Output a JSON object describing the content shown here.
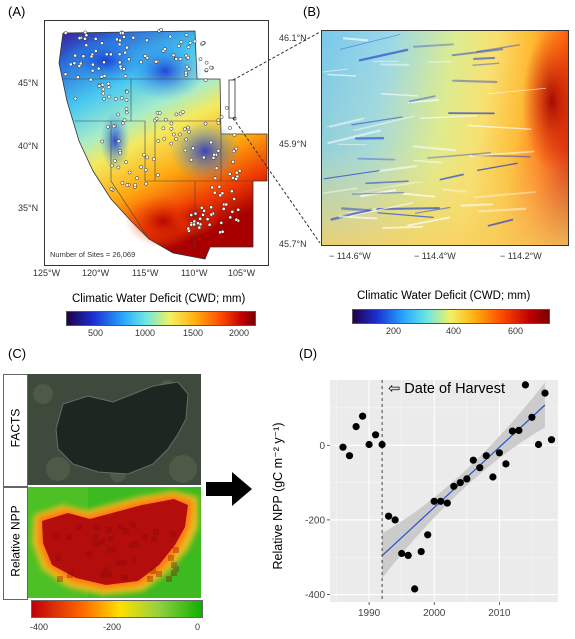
{
  "panels": {
    "a": {
      "label": "(A)",
      "lat_ticks": [
        "45°N",
        "40°N",
        "35°N"
      ],
      "lon_ticks": [
        "125°W",
        "120°W",
        "115°W",
        "110°W",
        "105°W"
      ],
      "note": "Number of Sites = 26,069",
      "colorbar_title": "Climatic Water Deficit (CWD; mm)",
      "colorbar_ticks": [
        "500",
        "1000",
        "1500",
        "2000"
      ]
    },
    "b": {
      "label": "(B)",
      "lat_ticks": [
        "46.1°N",
        "45.9°N",
        "45.7°N"
      ],
      "lon_ticks": [
        "− 114.6°W",
        "− 114.4°W",
        "− 114.2°W"
      ],
      "colorbar_title": "Climatic Water Deficit (CWD; mm)",
      "colorbar_ticks": [
        "200",
        "400",
        "600"
      ]
    },
    "c": {
      "label": "(C)",
      "strip_top": "FACTS",
      "strip_bottom": "Relative NPP",
      "colorbar_ticks": [
        "-400",
        "-200",
        "0"
      ]
    },
    "d": {
      "label": "(D)",
      "annotation": "⇦ Date of Harvest"
    }
  },
  "colors": {
    "cwd_scale": [
      "#20004a",
      "#1a2fd0",
      "#28a8ff",
      "#6ee8e0",
      "#f4f060",
      "#ffb010",
      "#ff4a00",
      "#c00000",
      "#7a0000"
    ],
    "npp_scale": [
      "#c0000a",
      "#ff6a00",
      "#ffe000",
      "#90d040",
      "#10b000"
    ],
    "fit_line": "#2952c8",
    "ci_band": "#c8c8c8"
  },
  "chart_data": {
    "type": "scatter",
    "title": "",
    "xlabel": "",
    "ylabel": "Relative NPP (gC m⁻² y⁻¹)",
    "xlim": [
      1984,
      2019
    ],
    "ylim": [
      -420,
      175
    ],
    "xticks": [
      1990,
      2000,
      2010
    ],
    "yticks": [
      0,
      -200,
      -400
    ],
    "harvest_year": 1992,
    "points": [
      [
        1986,
        -5
      ],
      [
        1987,
        -28
      ],
      [
        1988,
        50
      ],
      [
        1989,
        78
      ],
      [
        1990,
        2
      ],
      [
        1991,
        28
      ],
      [
        1992,
        2
      ],
      [
        1993,
        -190
      ],
      [
        1994,
        -200
      ],
      [
        1995,
        -290
      ],
      [
        1996,
        -295
      ],
      [
        1997,
        -385
      ],
      [
        1998,
        -285
      ],
      [
        1999,
        -240
      ],
      [
        2000,
        -150
      ],
      [
        2001,
        -150
      ],
      [
        2002,
        -155
      ],
      [
        2003,
        -110
      ],
      [
        2004,
        -100
      ],
      [
        2005,
        -90
      ],
      [
        2006,
        -40
      ],
      [
        2007,
        -60
      ],
      [
        2008,
        -28
      ],
      [
        2009,
        -85
      ],
      [
        2010,
        -20
      ],
      [
        2011,
        -50
      ],
      [
        2012,
        38
      ],
      [
        2013,
        40
      ],
      [
        2014,
        162
      ],
      [
        2015,
        75
      ],
      [
        2016,
        2
      ],
      [
        2017,
        140
      ],
      [
        2018,
        15
      ]
    ],
    "fit": {
      "x": [
        1992,
        2017
      ],
      "y": [
        -296,
        108
      ]
    },
    "grid": true
  }
}
